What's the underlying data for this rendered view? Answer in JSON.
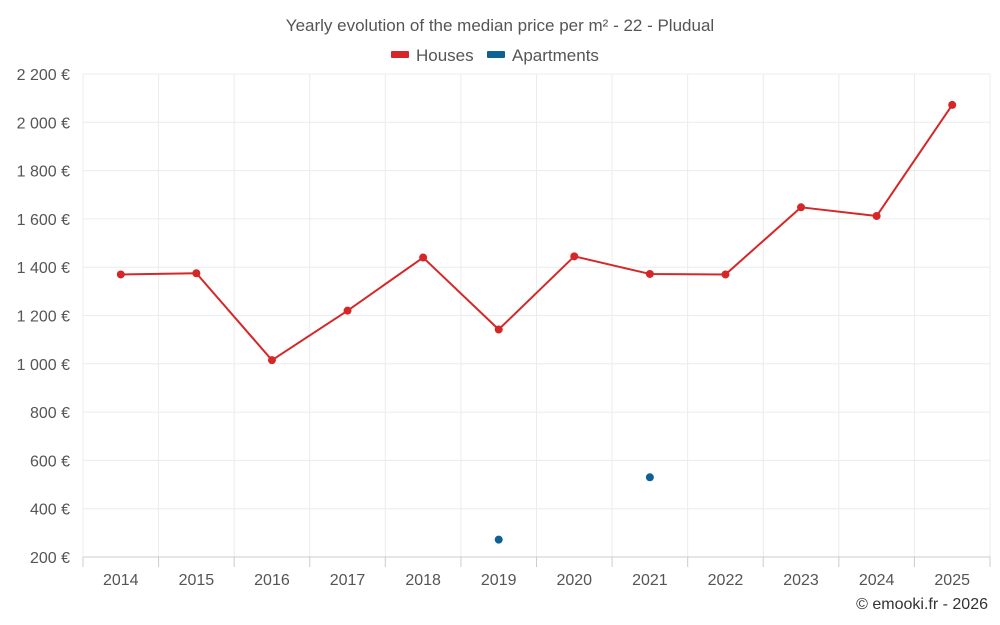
{
  "chart_data": {
    "type": "line",
    "title": "Yearly evolution of the median price per m² - 22 - Pludual",
    "categories": [
      "2014",
      "2015",
      "2016",
      "2017",
      "2018",
      "2019",
      "2020",
      "2021",
      "2022",
      "2023",
      "2024",
      "2025"
    ],
    "y_ticks": [
      "200 €",
      "400 €",
      "600 €",
      "800 €",
      "1 000 €",
      "1 200 €",
      "1 400 €",
      "1 600 €",
      "1 800 €",
      "2 000 €",
      "2 200 €"
    ],
    "ylim": [
      200,
      2200
    ],
    "grid": true,
    "legend_position": "top-center",
    "series": [
      {
        "name": "Houses",
        "color": "#d62728",
        "values": [
          1370,
          1375,
          1015,
          1220,
          1440,
          1142,
          1445,
          1372,
          1370,
          1648,
          1612,
          2072
        ]
      },
      {
        "name": "Apartments",
        "color": "#0e6195",
        "values": [
          null,
          null,
          null,
          null,
          null,
          272,
          null,
          530,
          null,
          null,
          null,
          null
        ]
      }
    ]
  },
  "credit": "© emooki.fr - 2026"
}
